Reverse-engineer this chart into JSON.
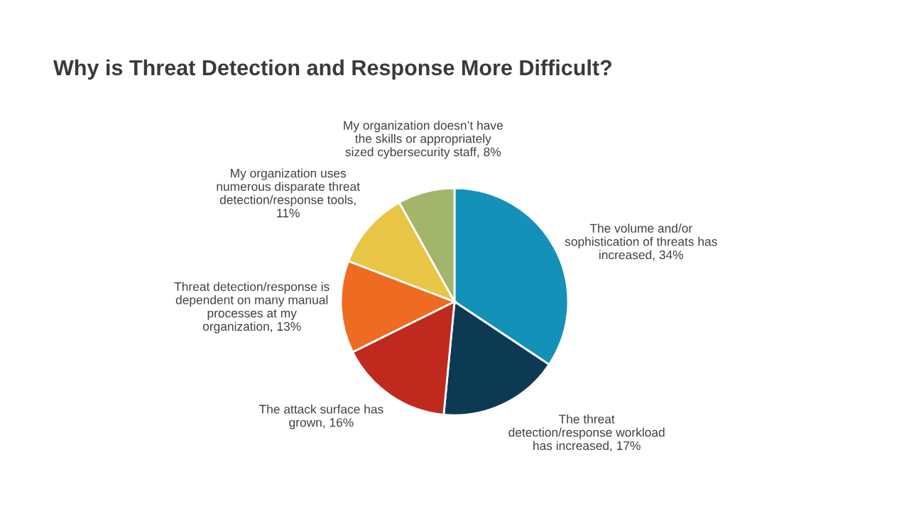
{
  "chart_data": {
    "type": "pie",
    "title": "Why is Threat Detection and Response More Difficult?",
    "categories": [
      "The volume and/or sophistication of threats has increased, 34%",
      "The threat detection/response workload has increased, 17%",
      "The attack surface has grown, 16%",
      "Threat detection/response is dependent on many manual processes at my organization, 13%",
      "My organization uses numerous disparate threat detection/response tools, 11%",
      "My organization doesn’t have the skills or appropriately sized cybersecurity staff, 8%"
    ],
    "values": [
      34,
      17,
      16,
      13,
      11,
      8
    ],
    "colors": [
      "#1491b8",
      "#0d3a53",
      "#c0291e",
      "#ef6b21",
      "#e8c544",
      "#a3b56c"
    ],
    "legend": false
  }
}
